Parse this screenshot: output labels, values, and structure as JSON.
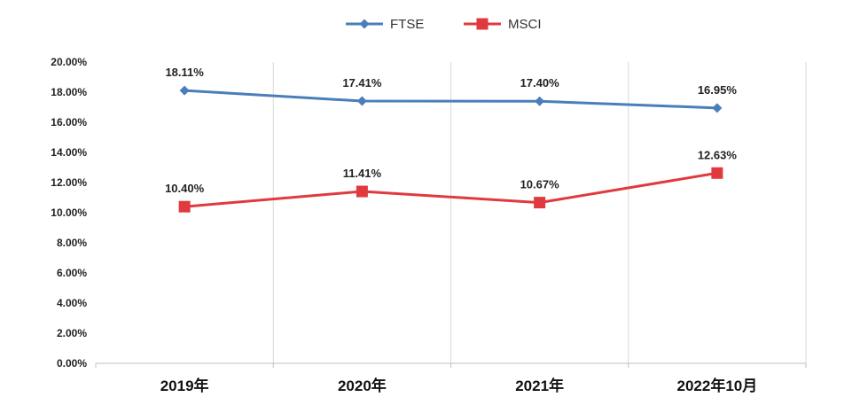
{
  "chart_data": {
    "type": "line",
    "categories": [
      "2019年",
      "2020年",
      "2021年",
      "2022年10月"
    ],
    "series": [
      {
        "name": "FTSE",
        "values": [
          18.11,
          17.41,
          17.4,
          16.95
        ],
        "labels": [
          "18.11%",
          "17.41%",
          "17.40%",
          "16.95%"
        ],
        "color": "#4a7ebb",
        "marker": "diamond"
      },
      {
        "name": "MSCI",
        "values": [
          10.4,
          11.41,
          10.67,
          12.63
        ],
        "labels": [
          "10.40%",
          "11.41%",
          "10.67%",
          "12.63%"
        ],
        "color": "#e03a3e",
        "marker": "square"
      }
    ],
    "y_ticks": [
      "0.00%",
      "2.00%",
      "4.00%",
      "6.00%",
      "8.00%",
      "10.00%",
      "12.00%",
      "14.00%",
      "16.00%",
      "18.00%",
      "20.00%"
    ],
    "ylim": [
      0,
      20
    ],
    "y_step": 2,
    "grid": "vertical",
    "legend": "top-center",
    "gridline_color": "#d9d9d9",
    "axis_color": "#bfbfbf"
  }
}
